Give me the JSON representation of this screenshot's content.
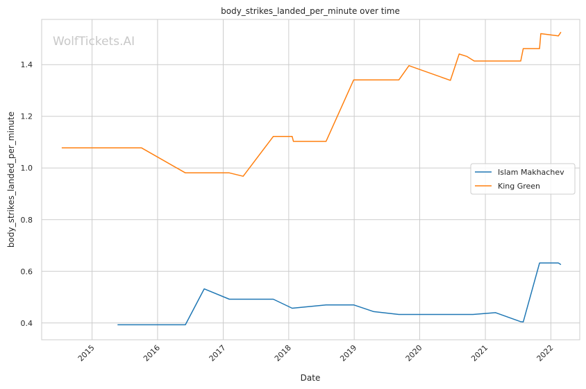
{
  "chart_data": {
    "type": "line",
    "title": "body_strikes_landed_per_minute over time",
    "xlabel": "Date",
    "ylabel": "body_strikes_landed_per_minute",
    "watermark": "WolfTickets.AI",
    "x_ticks": [
      "2015",
      "2016",
      "2017",
      "2018",
      "2019",
      "2020",
      "2021",
      "2022"
    ],
    "y_ticks": [
      "0.4",
      "0.6",
      "0.8",
      "1.0",
      "1.2",
      "1.4"
    ],
    "xlim": [
      "2014-03-26",
      "2022-06-11"
    ],
    "ylim": [
      0.335,
      1.575
    ],
    "grid": true,
    "legend_position": "center-right",
    "series": [
      {
        "name": "Islam Makhachev",
        "color": "#1f77b4",
        "points": [
          [
            "2015-05-23",
            0.393
          ],
          [
            "2016-06-04",
            0.393
          ],
          [
            "2016-09-17",
            0.532
          ],
          [
            "2017-02-04",
            0.492
          ],
          [
            "2017-10-07",
            0.492
          ],
          [
            "2018-01-20",
            0.457
          ],
          [
            "2018-07-28",
            0.47
          ],
          [
            "2018-12-29",
            0.47
          ],
          [
            "2019-04-20",
            0.444
          ],
          [
            "2019-09-07",
            0.433
          ],
          [
            "2020-10-24",
            0.433
          ],
          [
            "2021-02-27",
            0.44
          ],
          [
            "2021-07-17",
            0.405
          ],
          [
            "2021-07-31",
            0.404
          ],
          [
            "2021-10-30",
            0.632
          ],
          [
            "2022-02-12",
            0.632
          ],
          [
            "2022-02-26",
            0.626
          ]
        ]
      },
      {
        "name": "King Green",
        "color": "#ff7f0e",
        "points": [
          [
            "2014-07-16",
            1.078
          ],
          [
            "2015-10-03",
            1.078
          ],
          [
            "2016-06-04",
            0.981
          ],
          [
            "2017-02-04",
            0.981
          ],
          [
            "2017-04-22",
            0.968
          ],
          [
            "2017-10-07",
            1.122
          ],
          [
            "2018-01-20",
            1.122
          ],
          [
            "2018-01-27",
            1.103
          ],
          [
            "2018-07-28",
            1.103
          ],
          [
            "2018-12-29",
            1.341
          ],
          [
            "2019-09-07",
            1.341
          ],
          [
            "2019-11-02",
            1.396
          ],
          [
            "2020-06-20",
            1.339
          ],
          [
            "2020-08-08",
            1.441
          ],
          [
            "2020-09-19",
            1.432
          ],
          [
            "2020-10-31",
            1.414
          ],
          [
            "2021-07-17",
            1.414
          ],
          [
            "2021-07-31",
            1.462
          ],
          [
            "2021-10-30",
            1.462
          ],
          [
            "2021-11-06",
            1.52
          ],
          [
            "2022-02-12",
            1.511
          ],
          [
            "2022-02-26",
            1.526
          ]
        ]
      }
    ]
  }
}
